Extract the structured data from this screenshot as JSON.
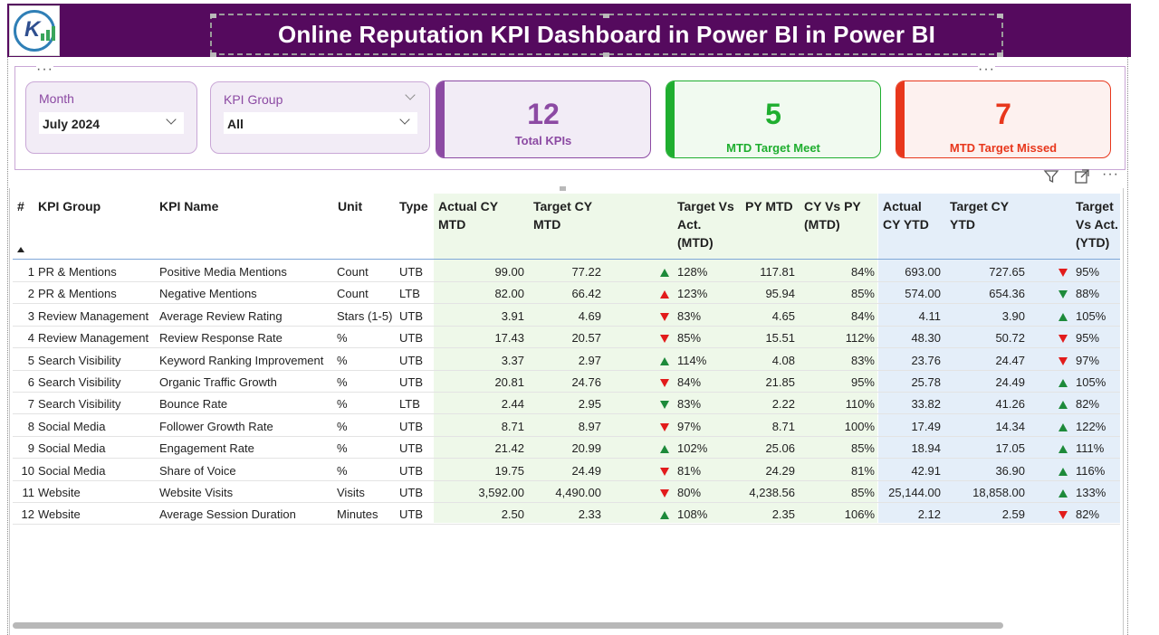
{
  "header": {
    "title": "Online Reputation KPI Dashboard in Power BI in Power BI"
  },
  "slicers": {
    "month": {
      "label": "Month",
      "value": "July 2024"
    },
    "kpi_group": {
      "label": "KPI Group",
      "value": "All"
    }
  },
  "cards": {
    "total": {
      "value": "12",
      "label": "Total KPIs",
      "color": "#8c4aa3"
    },
    "meet": {
      "value": "5",
      "label": "MTD Target Meet",
      "color": "#1fae2f"
    },
    "missed": {
      "value": "7",
      "label": "MTD Target Missed",
      "color": "#e8371c"
    }
  },
  "toolbar": {
    "more": "···"
  },
  "table": {
    "headers": {
      "idx": "#",
      "group": "KPI Group",
      "name": "KPI Name",
      "unit": "Unit",
      "type": "Type",
      "act_mtd": [
        "Actual CY",
        "MTD"
      ],
      "tgt_mtd": [
        "Target CY",
        "MTD"
      ],
      "tva_mtd": [
        "Target Vs",
        "Act.",
        "(MTD)"
      ],
      "py_mtd": [
        "PY MTD"
      ],
      "cvp_mtd": [
        "CY Vs PY",
        "(MTD)"
      ],
      "act_ytd": [
        "Actual",
        "CY YTD"
      ],
      "tgt_ytd": [
        "Target CY",
        "YTD"
      ],
      "tva_ytd": [
        "Target",
        "Vs Act.",
        "(YTD)"
      ]
    },
    "rows": [
      {
        "idx": "1",
        "group": "PR & Mentions",
        "name": "Positive Media Mentions",
        "unit": "Count",
        "type": "UTB",
        "act_mtd": "99.00",
        "tgt_mtd": "77.22",
        "ind_mtd": "up-g",
        "tva_mtd": "128%",
        "py_mtd": "117.81",
        "cvp_mtd": "84%",
        "act_ytd": "693.00",
        "tgt_ytd": "727.65",
        "ind_ytd": "down-r",
        "tva_ytd": "95%"
      },
      {
        "idx": "2",
        "group": "PR & Mentions",
        "name": "Negative Mentions",
        "unit": "Count",
        "type": "LTB",
        "act_mtd": "82.00",
        "tgt_mtd": "66.42",
        "ind_mtd": "up-r",
        "tva_mtd": "123%",
        "py_mtd": "95.94",
        "cvp_mtd": "85%",
        "act_ytd": "574.00",
        "tgt_ytd": "654.36",
        "ind_ytd": "down-g",
        "tva_ytd": "88%"
      },
      {
        "idx": "3",
        "group": "Review Management",
        "name": "Average Review Rating",
        "unit": "Stars (1-5)",
        "type": "UTB",
        "act_mtd": "3.91",
        "tgt_mtd": "4.69",
        "ind_mtd": "down-r",
        "tva_mtd": "83%",
        "py_mtd": "4.65",
        "cvp_mtd": "84%",
        "act_ytd": "4.11",
        "tgt_ytd": "3.90",
        "ind_ytd": "up-g",
        "tva_ytd": "105%"
      },
      {
        "idx": "4",
        "group": "Review Management",
        "name": "Review Response Rate",
        "unit": "%",
        "type": "UTB",
        "act_mtd": "17.43",
        "tgt_mtd": "20.57",
        "ind_mtd": "down-r",
        "tva_mtd": "85%",
        "py_mtd": "15.51",
        "cvp_mtd": "112%",
        "act_ytd": "48.30",
        "tgt_ytd": "50.72",
        "ind_ytd": "down-r",
        "tva_ytd": "95%"
      },
      {
        "idx": "5",
        "group": "Search Visibility",
        "name": "Keyword Ranking Improvement",
        "unit": "%",
        "type": "UTB",
        "act_mtd": "3.37",
        "tgt_mtd": "2.97",
        "ind_mtd": "up-g",
        "tva_mtd": "114%",
        "py_mtd": "4.08",
        "cvp_mtd": "83%",
        "act_ytd": "23.76",
        "tgt_ytd": "24.47",
        "ind_ytd": "down-r",
        "tva_ytd": "97%"
      },
      {
        "idx": "6",
        "group": "Search Visibility",
        "name": "Organic Traffic Growth",
        "unit": "%",
        "type": "UTB",
        "act_mtd": "20.81",
        "tgt_mtd": "24.76",
        "ind_mtd": "down-r",
        "tva_mtd": "84%",
        "py_mtd": "21.85",
        "cvp_mtd": "95%",
        "act_ytd": "25.78",
        "tgt_ytd": "24.49",
        "ind_ytd": "up-g",
        "tva_ytd": "105%"
      },
      {
        "idx": "7",
        "group": "Search Visibility",
        "name": "Bounce Rate",
        "unit": "%",
        "type": "LTB",
        "act_mtd": "2.44",
        "tgt_mtd": "2.95",
        "ind_mtd": "down-g",
        "tva_mtd": "83%",
        "py_mtd": "2.22",
        "cvp_mtd": "110%",
        "act_ytd": "33.82",
        "tgt_ytd": "41.26",
        "ind_ytd": "up-g",
        "tva_ytd": "82%"
      },
      {
        "idx": "8",
        "group": "Social Media",
        "name": "Follower Growth Rate",
        "unit": "%",
        "type": "UTB",
        "act_mtd": "8.71",
        "tgt_mtd": "8.97",
        "ind_mtd": "down-r",
        "tva_mtd": "97%",
        "py_mtd": "8.71",
        "cvp_mtd": "100%",
        "act_ytd": "17.49",
        "tgt_ytd": "14.34",
        "ind_ytd": "up-g",
        "tva_ytd": "122%"
      },
      {
        "idx": "9",
        "group": "Social Media",
        "name": "Engagement Rate",
        "unit": "%",
        "type": "UTB",
        "act_mtd": "21.42",
        "tgt_mtd": "20.99",
        "ind_mtd": "up-g",
        "tva_mtd": "102%",
        "py_mtd": "25.06",
        "cvp_mtd": "85%",
        "act_ytd": "18.94",
        "tgt_ytd": "17.05",
        "ind_ytd": "up-g",
        "tva_ytd": "111%"
      },
      {
        "idx": "10",
        "group": "Social Media",
        "name": "Share of Voice",
        "unit": "%",
        "type": "UTB",
        "act_mtd": "19.75",
        "tgt_mtd": "24.49",
        "ind_mtd": "down-r",
        "tva_mtd": "81%",
        "py_mtd": "24.29",
        "cvp_mtd": "81%",
        "act_ytd": "42.91",
        "tgt_ytd": "36.90",
        "ind_ytd": "up-g",
        "tva_ytd": "116%"
      },
      {
        "idx": "11",
        "group": "Website",
        "name": "Website Visits",
        "unit": "Visits",
        "type": "UTB",
        "act_mtd": "3,592.00",
        "tgt_mtd": "4,490.00",
        "ind_mtd": "down-r",
        "tva_mtd": "80%",
        "py_mtd": "4,238.56",
        "cvp_mtd": "85%",
        "act_ytd": "25,144.00",
        "tgt_ytd": "18,858.00",
        "ind_ytd": "up-g",
        "tva_ytd": "133%"
      },
      {
        "idx": "12",
        "group": "Website",
        "name": "Average Session Duration",
        "unit": "Minutes",
        "type": "UTB",
        "act_mtd": "2.50",
        "tgt_mtd": "2.33",
        "ind_mtd": "up-g",
        "tva_mtd": "108%",
        "py_mtd": "2.35",
        "cvp_mtd": "106%",
        "act_ytd": "2.12",
        "tgt_ytd": "2.59",
        "ind_ytd": "down-r",
        "tva_ytd": "82%"
      }
    ]
  }
}
